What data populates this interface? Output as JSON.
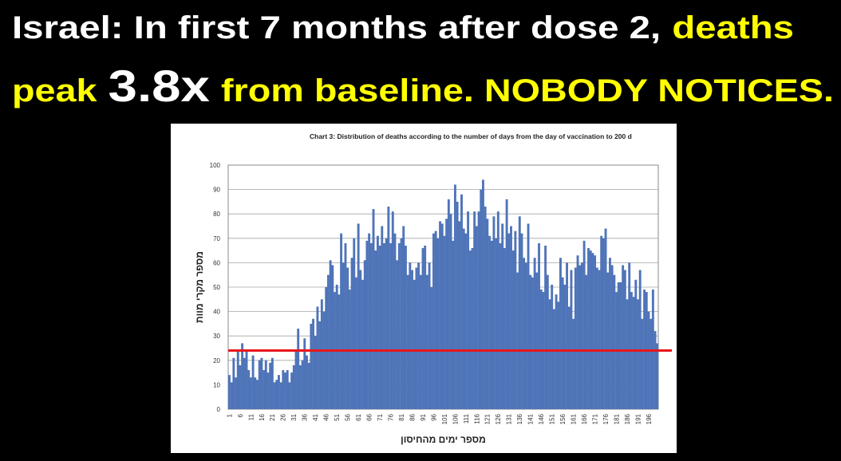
{
  "headline": [
    [
      {
        "text": "Israel: In first 7 months after dose 2,",
        "color": "#ffffff"
      },
      {
        "text": "deaths",
        "color": "#ffff00"
      }
    ],
    [
      {
        "text": "peak",
        "color": "#ffff00"
      },
      {
        "text": "3.8x",
        "color": "#ffffff"
      },
      {
        "text": "from baseline. NOBODY NOTICES.",
        "color": "#ffff00"
      }
    ]
  ],
  "chart_data": {
    "type": "bar",
    "title": "Chart 3: Distribution of deaths according to the number of days from the day of vaccination to 200 d",
    "y_label": "מספר מקרי מוות",
    "x_label": "מספר ימים מהחיסון",
    "color": "#4f74b8",
    "grid": true,
    "ylim": [
      0,
      100
    ],
    "yticks": [
      0,
      10,
      20,
      30,
      40,
      50,
      60,
      70,
      80,
      90,
      100
    ],
    "reference_line": {
      "value": 24,
      "color": "#e8161c"
    },
    "categories": [
      1,
      null,
      null,
      null,
      null,
      6,
      null,
      null,
      null,
      null,
      11,
      null,
      null,
      null,
      null,
      16,
      null,
      null,
      null,
      null,
      21,
      null,
      null,
      null,
      null,
      26,
      null,
      null,
      null,
      null,
      31,
      null,
      null,
      null,
      null,
      36,
      null,
      null,
      null,
      null,
      41,
      null,
      null,
      null,
      null,
      46,
      null,
      null,
      null,
      null,
      51,
      null,
      null,
      null,
      null,
      56,
      null,
      null,
      null,
      null,
      61,
      null,
      null,
      null,
      null,
      66,
      null,
      null,
      null,
      null,
      71,
      null,
      null,
      null,
      null,
      76,
      null,
      null,
      null,
      null,
      81,
      null,
      null,
      null,
      null,
      86,
      null,
      null,
      null,
      null,
      91,
      null,
      null,
      null,
      null,
      96,
      null,
      null,
      null,
      null,
      101,
      null,
      null,
      null,
      null,
      106,
      null,
      null,
      null,
      null,
      111,
      null,
      null,
      null,
      null,
      116,
      null,
      null,
      null,
      null,
      121,
      null,
      null,
      null,
      null,
      126,
      null,
      null,
      null,
      null,
      131,
      null,
      null,
      null,
      null,
      136,
      null,
      null,
      null,
      null,
      141,
      null,
      null,
      null,
      null,
      146,
      null,
      null,
      null,
      null,
      151,
      null,
      null,
      null,
      null,
      156,
      null,
      null,
      null,
      null,
      161,
      null,
      null,
      null,
      null,
      166,
      null,
      null,
      null,
      null,
      171,
      null,
      null,
      null,
      null,
      176,
      null,
      null,
      null,
      null,
      181,
      null,
      null,
      null,
      null,
      186,
      null,
      null,
      null,
      null,
      191,
      null,
      null,
      null,
      null,
      196,
      null,
      null,
      null,
      null
    ],
    "values": [
      14,
      11,
      21,
      13,
      24,
      18,
      27,
      21,
      24,
      16,
      13,
      22,
      13,
      12,
      20,
      21,
      16,
      20,
      15,
      19,
      21,
      11,
      12,
      14,
      11,
      16,
      15,
      16,
      11,
      15,
      18,
      24,
      33,
      18,
      20,
      29,
      22,
      19,
      35,
      37,
      30,
      42,
      36,
      45,
      40,
      50,
      55,
      61,
      59,
      48,
      51,
      47,
      72,
      60,
      68,
      58,
      49,
      62,
      70,
      54,
      76,
      57,
      53,
      61,
      69,
      72,
      68,
      82,
      65,
      71,
      67,
      75,
      68,
      70,
      83,
      68,
      81,
      72,
      61,
      68,
      70,
      75,
      67,
      55,
      60,
      57,
      53,
      58,
      60,
      55,
      66,
      67,
      55,
      60,
      50,
      72,
      73,
      70,
      77,
      76,
      71,
      78,
      86,
      80,
      69,
      92,
      85,
      77,
      88,
      74,
      72,
      81,
      65,
      66,
      81,
      75,
      81,
      90,
      94,
      83,
      78,
      71,
      69,
      79,
      70,
      81,
      68,
      76,
      66,
      86,
      72,
      75,
      65,
      73,
      56,
      79,
      72,
      62,
      60,
      76,
      55,
      54,
      62,
      56,
      68,
      49,
      48,
      67,
      55,
      45,
      51,
      41,
      47,
      44,
      62,
      54,
      51,
      60,
      42,
      57,
      37,
      58,
      63,
      59,
      60,
      69,
      55,
      66,
      65,
      64,
      63,
      58,
      57,
      71,
      70,
      74,
      56,
      62,
      59,
      55,
      48,
      52,
      52,
      59,
      57,
      45,
      60,
      48,
      46,
      53,
      45,
      57,
      37,
      49,
      48,
      40,
      37,
      49,
      32,
      27
    ]
  }
}
